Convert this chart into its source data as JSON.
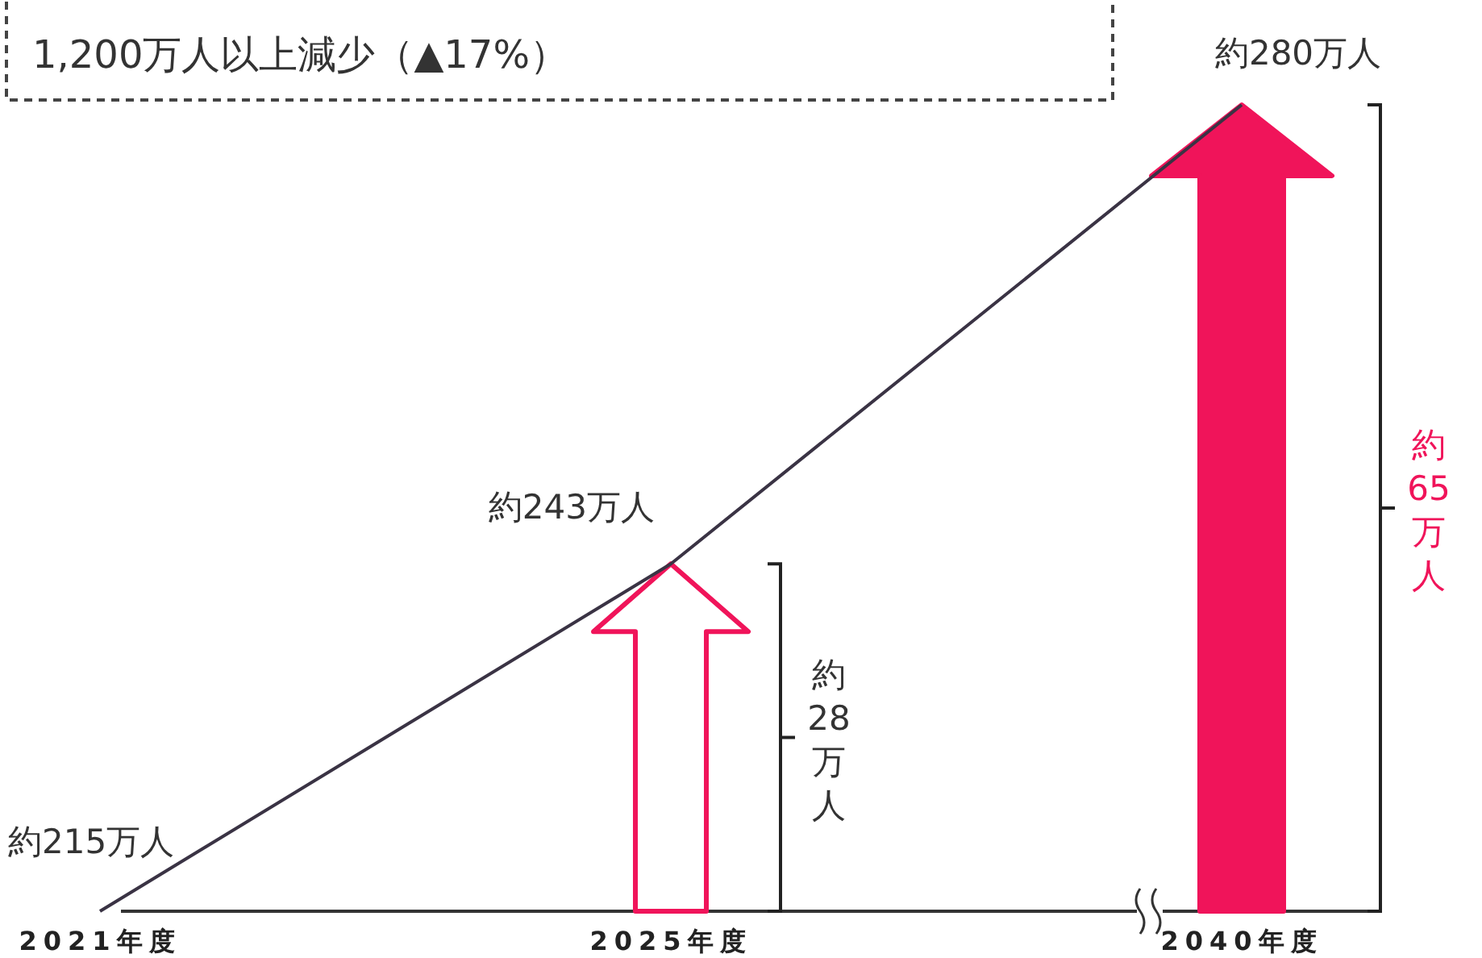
{
  "chart_data": {
    "type": "line",
    "categories": [
      "2021年度",
      "2025年度",
      "2040年度"
    ],
    "tick_labels": "x",
    "annotations": [
      "1,200万人以上減少（▲17%）",
      "約28万人",
      "約65万人"
    ],
    "series": [
      {
        "color": "#3a3344",
        "values": [
          215,
          243,
          280
        ],
        "value_labels": [
          "約215万人",
          "約243万人",
          "約280万人"
        ]
      }
    ]
  }
}
